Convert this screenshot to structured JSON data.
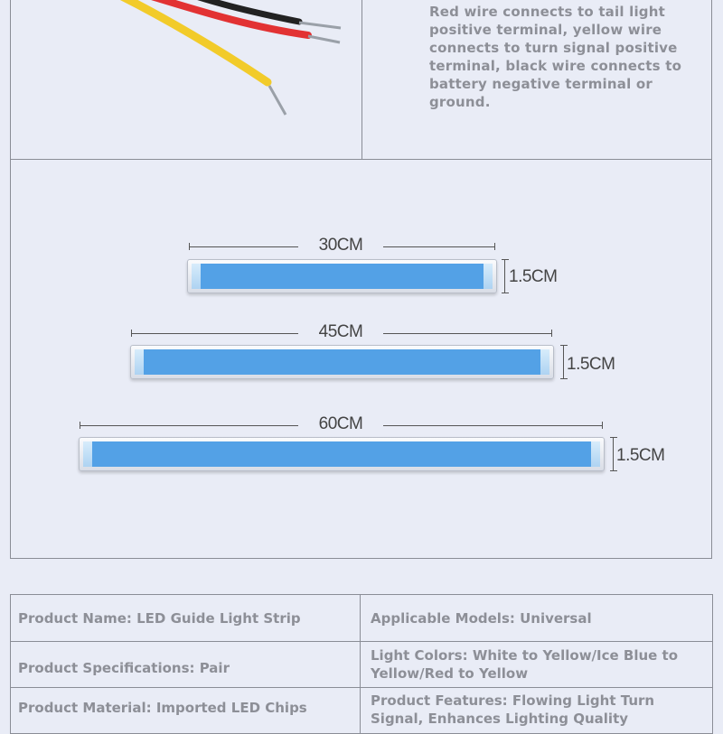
{
  "wiring": {
    "description": "Red wire connects to tail light positive terminal, yellow wire connects to turn signal positive terminal, black wire connects to battery negative terminal or ground.",
    "wire_colors": {
      "red": "#e23233",
      "yellow": "#f2cb2a",
      "black": "#222222"
    }
  },
  "strips": [
    {
      "length_label": "30CM",
      "height_label": "1.5CM"
    },
    {
      "length_label": "45CM",
      "height_label": "1.5CM"
    },
    {
      "length_label": "60CM",
      "height_label": "1.5CM"
    }
  ],
  "led_color": "#53a1e6",
  "specs": {
    "rows": [
      {
        "left": "Product Name: LED Guide Light Strip",
        "right": "Applicable Models: Universal"
      },
      {
        "left": "Product Specifications: Pair",
        "right": "Light Colors: White to Yellow/Ice Blue to Yellow/Red to Yellow"
      },
      {
        "left": "Product Material: Imported LED Chips",
        "right": "Product Features: Flowing Light Turn Signal, Enhances Lighting Quality"
      }
    ]
  }
}
